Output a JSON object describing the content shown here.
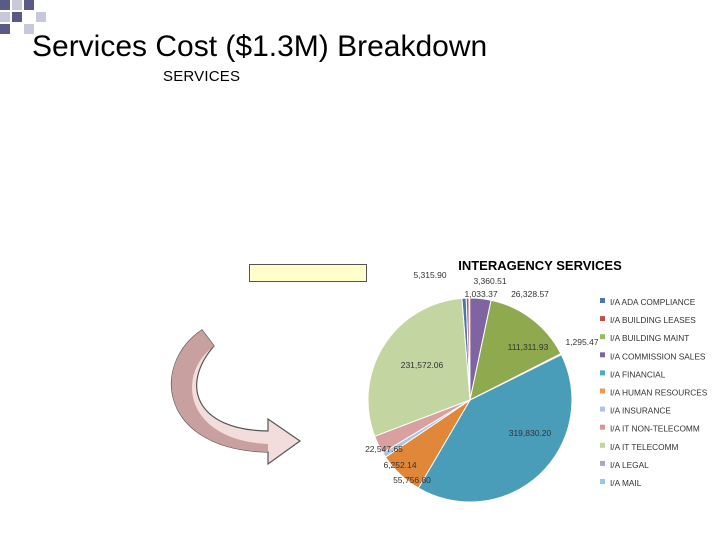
{
  "slide": {
    "title": "Services Cost ($1.3M) Breakdown",
    "subheading": "SERVICES"
  },
  "colors": {
    "deco_dark": "#5a5a88",
    "deco_light": "#c8c8dc",
    "callout_box": "#ffffcc",
    "arrow_fill": "#c9a0a0",
    "arrow_fill_light": "#f3dcdc"
  },
  "chart_data": {
    "type": "pie",
    "title": "INTERAGENCY SERVICES",
    "legend_position": "right",
    "slices": [
      {
        "name": "I/A ADA COMPLIANCE",
        "value": 5315.9,
        "label": "5,315.90",
        "color": "#4a76b0"
      },
      {
        "name": "I/A BUILDING LEASES",
        "value": 3360.51,
        "label": "3,360.51",
        "color": "#c0504d"
      },
      {
        "name": "I/A BUILDING MAINT",
        "value": 1033.37,
        "label": "1,033.37",
        "color": "#9bbb59"
      },
      {
        "name": "I/A COMMISSION SALES",
        "value": 26328.57,
        "label": "26,328.57",
        "color": "#8064a2"
      },
      {
        "name": "I/A FINANCIAL",
        "value": 111311.93,
        "label": "111,311.93",
        "color": "#8faa4e"
      },
      {
        "name": "I/A HUMAN RESOURCES",
        "value": 1295.47,
        "label": "1,295.47",
        "color": "#f79646"
      },
      {
        "name": "I/A INSURANCE",
        "value": 319830.2,
        "label": "319,830.20",
        "color": "#4a9db8"
      },
      {
        "name": "I/A IT NON-TELECOMM",
        "value": 55756.8,
        "label": "55,756.80",
        "color": "#e0873a"
      },
      {
        "name": "I/A IT TELECOMM",
        "value": 6252.14,
        "label": "6,252.14",
        "color": "#aec4e0"
      },
      {
        "name": "I/A LEGAL",
        "value": 22547.65,
        "label": "22,547.65",
        "color": "#d9a0a0"
      },
      {
        "name": "I/A MAIL",
        "value": 231572.06,
        "label": "231,572.06",
        "color": "#c3d5a0"
      }
    ],
    "legend": [
      {
        "label": "I/A ADA COMPLIANCE",
        "color": "#4a76b0"
      },
      {
        "label": "I/A BUILDING LEASES",
        "color": "#c0504d"
      },
      {
        "label": "I/A BUILDING MAINT",
        "color": "#9bbb59"
      },
      {
        "label": "I/A COMMISSION SALES",
        "color": "#8064a2"
      },
      {
        "label": "I/A FINANCIAL",
        "color": "#4bacc6"
      },
      {
        "label": "I/A HUMAN RESOURCES",
        "color": "#f79646"
      },
      {
        "label": "I/A INSURANCE",
        "color": "#aec4e0"
      },
      {
        "label": "I/A IT NON-TELECOMM",
        "color": "#d99694"
      },
      {
        "label": "I/A IT TELECOMM",
        "color": "#c3d69b"
      },
      {
        "label": "I/A LEGAL",
        "color": "#b3a2c7"
      },
      {
        "label": "I/A MAIL",
        "color": "#93cddd"
      }
    ]
  }
}
